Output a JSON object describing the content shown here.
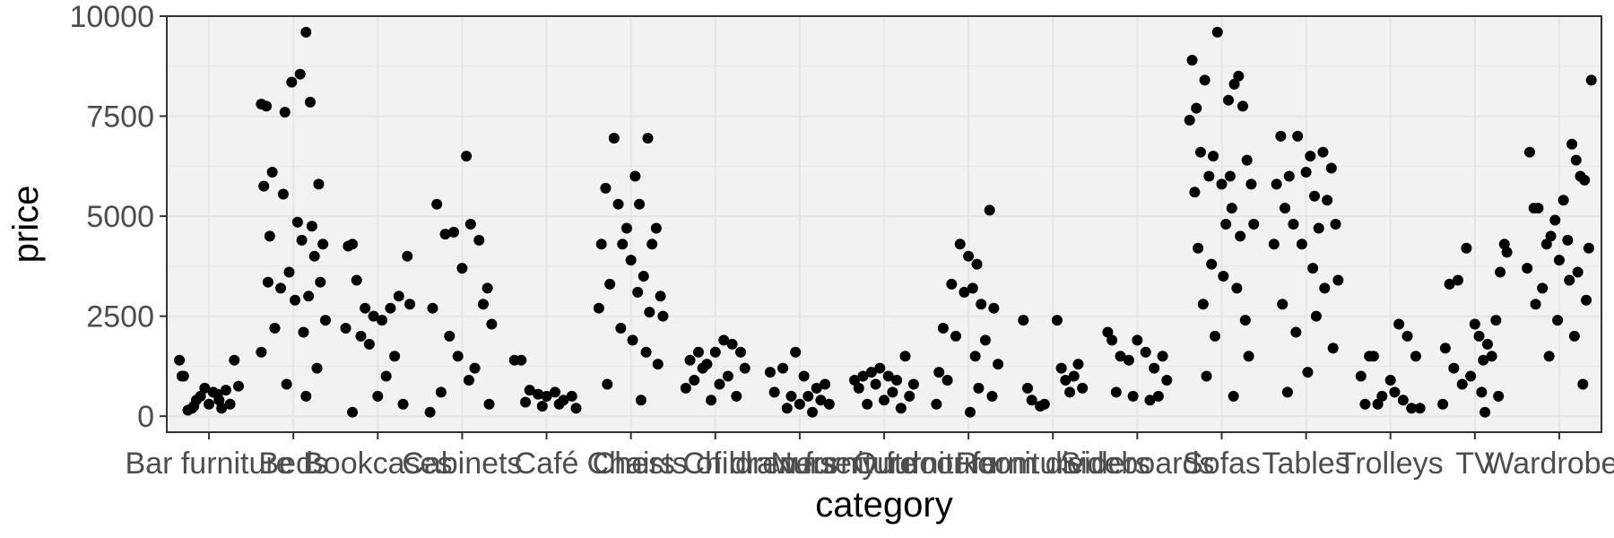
{
  "chart_data": {
    "type": "scatter",
    "subtype": "jitter strip plot",
    "title": "",
    "xlabel": "category",
    "ylabel": "price",
    "ylim": [
      -400,
      10000
    ],
    "y_ticks": [
      0,
      2500,
      5000,
      7500,
      10000
    ],
    "grid": true,
    "legend": "none",
    "colors": {
      "panel": "#f2f2f2",
      "grid": "#e6e6e6",
      "point": "#000000",
      "border": "#333333"
    },
    "categories": [
      "Bar furniture",
      "Beds",
      "Bookcases",
      "Cabinets",
      "Café",
      "Chairs",
      "Chests of drawers",
      "Children furniture",
      "Nursery furniture",
      "Outdoor furniture",
      "Room dividers",
      "Sideboards",
      "Sofas",
      "Tables",
      "Trolleys",
      "TV",
      "Wardrobes"
    ],
    "x_tick_labels": [
      "Bar furniture",
      "Beds",
      "Bookcases",
      "Cabinets",
      "Café",
      "Chairs",
      "Chests of drawers",
      "Children furniture",
      "Nursery furniture",
      "Outdoor furniture",
      "Room dividers",
      "Sideboards",
      "Sofas",
      "Tables",
      "Trolleys",
      "TV",
      "Wardrobes"
    ],
    "series": [
      {
        "category": "Bar furniture",
        "x": [
          -0.35,
          -0.3,
          -0.25,
          -0.2,
          -0.15,
          -0.1,
          -0.05,
          0,
          0.05,
          0.1,
          0.15,
          0.2,
          0.25,
          0.3,
          0.35,
          -0.32,
          0.12,
          -0.18
        ],
        "y": [
          1400,
          1000,
          150,
          200,
          400,
          500,
          700,
          300,
          600,
          550,
          200,
          650,
          300,
          1400,
          750,
          1000,
          400,
          250
        ]
      },
      {
        "category": "Beds",
        "x": [
          -0.38,
          -0.32,
          -0.25,
          -0.1,
          -0.02,
          0.08,
          0.15,
          0.2,
          0.3,
          -0.35,
          -0.12,
          0.05,
          0.22,
          0.35,
          -0.28,
          0.1,
          -0.05,
          0.32,
          -0.3,
          0.25,
          0.18,
          -0.15,
          0.02,
          0.38,
          -0.22,
          0.12,
          -0.38,
          0.28,
          -0.08,
          0.15
        ],
        "y": [
          7800,
          7750,
          6100,
          7600,
          8350,
          8550,
          9600,
          7850,
          5800,
          5750,
          5550,
          4850,
          4750,
          4300,
          4500,
          4400,
          3600,
          3350,
          3350,
          4000,
          3000,
          3200,
          2900,
          2400,
          2200,
          2100,
          1600,
          1200,
          800,
          500
        ]
      },
      {
        "category": "Bookcases",
        "x": [
          -0.35,
          -0.3,
          -0.25,
          -0.15,
          -0.05,
          0.05,
          0.15,
          0.25,
          0.35,
          -0.38,
          0.38,
          -0.2,
          0.2,
          -0.1,
          0.1,
          0,
          0.3,
          -0.3
        ],
        "y": [
          4250,
          4300,
          3400,
          2700,
          2500,
          2400,
          2700,
          3000,
          4000,
          2200,
          2800,
          2000,
          1500,
          1800,
          1000,
          500,
          300,
          100
        ]
      },
      {
        "category": "Cabinets",
        "x": [
          -0.3,
          -0.2,
          0.05,
          0.1,
          0.2,
          0.3,
          -0.1,
          0,
          0.25,
          -0.35,
          -0.15,
          0.35,
          0.15,
          -0.05,
          0.08,
          -0.25,
          0.32,
          -0.38
        ],
        "y": [
          5300,
          4550,
          6500,
          4800,
          4400,
          3200,
          4600,
          3700,
          2800,
          2700,
          2000,
          2300,
          1200,
          1500,
          900,
          600,
          300,
          100
        ]
      },
      {
        "category": "Café",
        "x": [
          -0.38,
          -0.3,
          -0.2,
          -0.1,
          0,
          0.1,
          0.2,
          0.3,
          -0.25,
          0.15,
          -0.05,
          0.35
        ],
        "y": [
          1400,
          1400,
          650,
          550,
          500,
          600,
          400,
          500,
          350,
          300,
          250,
          200
        ]
      },
      {
        "category": "Chairs",
        "x": [
          -0.2,
          0.05,
          0.2,
          -0.3,
          -0.15,
          -0.05,
          0.1,
          0.25,
          0.3,
          -0.35,
          -0.1,
          0,
          0.15,
          0.35,
          -0.25,
          0.08,
          0.22,
          -0.38,
          0.38,
          -0.12,
          0.02,
          0.18,
          0.32,
          -0.28,
          0.12
        ],
        "y": [
          6950,
          6000,
          6950,
          5700,
          5300,
          4700,
          5300,
          4300,
          4700,
          4300,
          4300,
          3900,
          3500,
          3000,
          3300,
          3100,
          2600,
          2700,
          2500,
          2200,
          1900,
          1600,
          1300,
          800,
          400
        ]
      },
      {
        "category": "Chests of drawers",
        "x": [
          -0.35,
          -0.3,
          -0.2,
          -0.1,
          0,
          0.1,
          0.2,
          0.3,
          0.35,
          -0.25,
          -0.15,
          0.05,
          0.15,
          0.25,
          -0.05
        ],
        "y": [
          700,
          1400,
          1600,
          1300,
          1600,
          1900,
          1800,
          1600,
          1200,
          900,
          1200,
          800,
          1000,
          500,
          400
        ]
      },
      {
        "category": "Children furniture",
        "x": [
          -0.35,
          -0.2,
          -0.05,
          0.05,
          0.2,
          0.3,
          -0.3,
          -0.1,
          0.1,
          0.25,
          0.35,
          0,
          -0.15,
          0.15
        ],
        "y": [
          1100,
          1200,
          1600,
          1000,
          700,
          800,
          600,
          500,
          500,
          400,
          300,
          300,
          200,
          100
        ]
      },
      {
        "category": "Nursery furniture",
        "x": [
          -0.35,
          -0.25,
          -0.15,
          -0.05,
          0.05,
          0.15,
          0.25,
          0.35,
          -0.3,
          -0.1,
          0.1,
          0.3,
          0,
          -0.2,
          0.2
        ],
        "y": [
          900,
          1000,
          1100,
          1200,
          1000,
          900,
          1500,
          800,
          700,
          800,
          600,
          500,
          400,
          300,
          200
        ]
      },
      {
        "category": "Outdoor furniture",
        "x": [
          -0.1,
          0,
          0.1,
          0.25,
          -0.2,
          -0.05,
          0.05,
          0.15,
          0.3,
          -0.3,
          -0.15,
          0.2,
          0.35,
          -0.35,
          0.08,
          -0.25,
          0.12,
          0.28,
          -0.38,
          0.02
        ],
        "y": [
          4300,
          4000,
          3800,
          5150,
          3300,
          3100,
          3200,
          2800,
          2700,
          2200,
          2000,
          1900,
          1300,
          1100,
          1500,
          900,
          700,
          500,
          300,
          100
        ]
      },
      {
        "category": "Room dividers",
        "x": [
          -0.35,
          -0.3,
          -0.25,
          -0.15,
          0.05,
          0.1,
          0.2,
          0.3,
          0.35,
          0.25,
          -0.1,
          0.15
        ],
        "y": [
          2400,
          700,
          400,
          250,
          2400,
          1200,
          600,
          1300,
          700,
          1000,
          300,
          900
        ]
      },
      {
        "category": "Sideboards",
        "x": [
          -0.35,
          -0.3,
          -0.2,
          -0.1,
          0,
          0.1,
          0.2,
          0.3,
          0.35,
          -0.25,
          -0.05,
          0.15,
          0.25
        ],
        "y": [
          2100,
          1900,
          1500,
          1400,
          1900,
          1600,
          1200,
          1500,
          900,
          600,
          500,
          400,
          500
        ]
      },
      {
        "category": "Sofas",
        "x": [
          -0.05,
          -0.35,
          -0.3,
          -0.2,
          0.15,
          0.2,
          0.08,
          0.25,
          -0.38,
          -0.25,
          -0.15,
          0.3,
          0.35,
          -0.1,
          0,
          0.1,
          0.12,
          -0.32,
          0.05,
          -0.28,
          0.22,
          0.38,
          -0.12,
          0.02,
          0.18,
          -0.22,
          0.28,
          -0.08,
          0.32,
          -0.18,
          0.14
        ],
        "y": [
          9600,
          8900,
          7700,
          8400,
          8300,
          8500,
          7900,
          7750,
          7400,
          6600,
          6000,
          6400,
          5800,
          6500,
          5800,
          6000,
          5200,
          5600,
          4800,
          4200,
          4500,
          4800,
          3800,
          3500,
          3200,
          2800,
          2400,
          2000,
          1500,
          1000,
          500
        ]
      },
      {
        "category": "Tables",
        "x": [
          -0.3,
          -0.1,
          0.05,
          0.2,
          0.3,
          -0.35,
          -0.2,
          0,
          0.1,
          0.25,
          0.35,
          -0.25,
          -0.15,
          0.15,
          -0.38,
          -0.05,
          0.08,
          0.22,
          0.38,
          -0.28,
          0.12,
          -0.12,
          0.32,
          0.02,
          -0.22
        ],
        "y": [
          7000,
          7000,
          6500,
          6600,
          6200,
          5800,
          6000,
          6100,
          5500,
          5400,
          4800,
          5200,
          4800,
          4700,
          4300,
          4300,
          3700,
          3200,
          3400,
          2800,
          2500,
          2100,
          1700,
          1100,
          600
        ]
      },
      {
        "category": "Trolleys",
        "x": [
          -0.35,
          -0.25,
          -0.2,
          -0.1,
          0,
          0.1,
          0.2,
          0.3,
          0.35,
          -0.3,
          -0.15,
          0.05,
          0.15,
          0.25
        ],
        "y": [
          1000,
          1500,
          1500,
          500,
          900,
          2300,
          2000,
          1500,
          200,
          300,
          300,
          600,
          400,
          200
        ]
      },
      {
        "category": "TV",
        "x": [
          -0.3,
          -0.2,
          -0.1,
          0.05,
          0.15,
          0.25,
          0.35,
          -0.35,
          0,
          0.1,
          0.3,
          -0.25,
          -0.05,
          0.2,
          0.38,
          -0.15,
          0.08,
          -0.38,
          0.28,
          0.12
        ],
        "y": [
          3300,
          3400,
          4200,
          2000,
          1800,
          2400,
          4300,
          1700,
          2300,
          1400,
          3600,
          1200,
          1000,
          1500,
          4100,
          800,
          600,
          300,
          500,
          100
        ]
      },
      {
        "category": "Wardrobes",
        "x": [
          0.38,
          -0.35,
          0.15,
          0.2,
          -0.25,
          0.05,
          -0.05,
          -0.3,
          0.25,
          0.3,
          -0.15,
          -0.1,
          0.1,
          0.35,
          -0.38,
          0,
          0.22,
          -0.2,
          0.12,
          -0.28,
          0.32,
          -0.02,
          0.18,
          -0.12,
          0.28
        ],
        "y": [
          8400,
          6600,
          6800,
          6400,
          5200,
          5400,
          4900,
          5200,
          6000,
          5900,
          4300,
          4500,
          4400,
          4200,
          3700,
          3900,
          3600,
          3200,
          3400,
          2800,
          2900,
          2400,
          2000,
          1500,
          800
        ]
      }
    ]
  }
}
